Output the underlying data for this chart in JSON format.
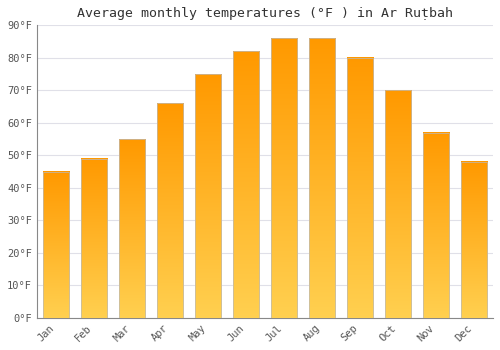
{
  "title": "Average monthly temperatures (°F ) in Ar Ruṭbah",
  "months": [
    "Jan",
    "Feb",
    "Mar",
    "Apr",
    "May",
    "Jun",
    "Jul",
    "Aug",
    "Sep",
    "Oct",
    "Nov",
    "Dec"
  ],
  "values": [
    45,
    49,
    55,
    66,
    75,
    82,
    86,
    86,
    80,
    70,
    57,
    48
  ],
  "bar_color_top": "#FFAA00",
  "bar_color_bottom": "#FFD070",
  "bar_edge_color": "#BBBBBB",
  "ylim": [
    0,
    90
  ],
  "yticks": [
    0,
    10,
    20,
    30,
    40,
    50,
    60,
    70,
    80,
    90
  ],
  "ylabel_suffix": "°F",
  "bg_color": "#ffffff",
  "grid_color": "#e0e0e8",
  "title_fontsize": 9.5,
  "tick_fontsize": 7.5,
  "font_family": "monospace",
  "bar_width": 0.7
}
